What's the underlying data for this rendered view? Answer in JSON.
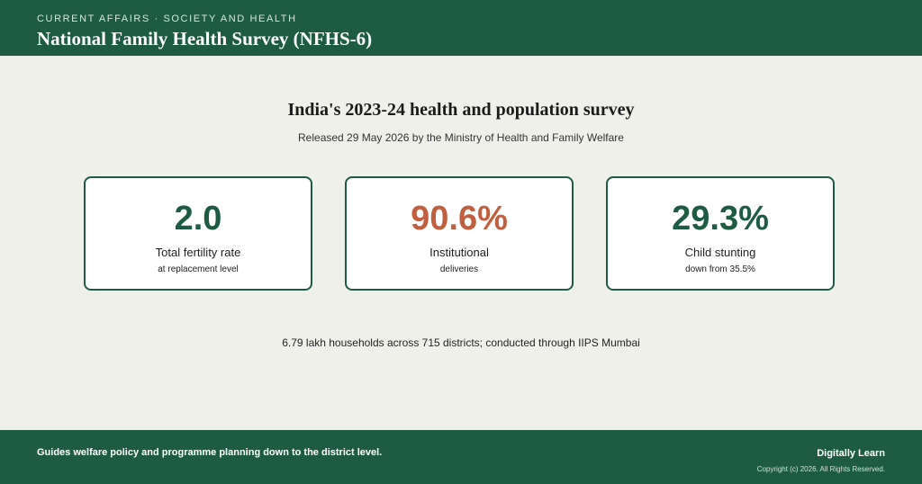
{
  "header": {
    "kicker": "CURRENT AFFAIRS · SOCIETY AND HEALTH",
    "title": "National Family Health Survey (NFHS-6)"
  },
  "main": {
    "heading": "India's 2023-24 health and population survey",
    "subheading": "Released 29 May 2026 by the Ministry of Health and Family Welfare",
    "cards": [
      {
        "value": "2.0",
        "label": "Total fertility rate",
        "note": "at replacement level"
      },
      {
        "value": "90.6%",
        "label": "Institutional",
        "note": "deliveries"
      },
      {
        "value": "29.3%",
        "label": "Child stunting",
        "note": "down from 35.5%"
      }
    ],
    "footnote": "6.79 lakh households across 715 districts; conducted through IIPS Mumbai"
  },
  "footer": {
    "text": "Guides welfare policy and programme planning down to the district level.",
    "brand": "Digitally Learn",
    "copyright": "Copyright (c) 2026. All Rights Reserved."
  }
}
